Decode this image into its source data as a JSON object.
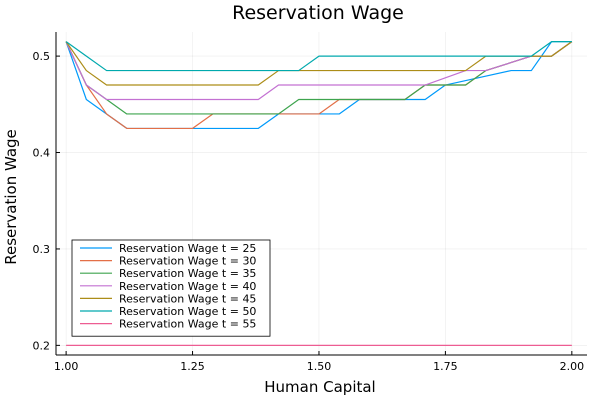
{
  "chart_data": {
    "type": "line",
    "title": "Reservation Wage",
    "xlabel": "Human Capital",
    "ylabel": "Reservation Wage",
    "xlim": [
      0.98,
      2.03
    ],
    "ylim": [
      0.19,
      0.525
    ],
    "xticks": [
      1.0,
      1.25,
      1.5,
      1.75,
      2.0
    ],
    "xtick_labels": [
      "1.00",
      "1.25",
      "1.50",
      "1.75",
      "2.00"
    ],
    "yticks": [
      0.2,
      0.3,
      0.4,
      0.5
    ],
    "ytick_labels": [
      "0.2",
      "0.3",
      "0.4",
      "0.5"
    ],
    "grid": true,
    "legend_position": "bottom-left",
    "series": [
      {
        "name": "Reservation Wage t = 25",
        "color": "#009AFA",
        "x": [
          1.0,
          1.04,
          1.08,
          1.12,
          1.25,
          1.29,
          1.38,
          1.42,
          1.54,
          1.58,
          1.71,
          1.75,
          1.88,
          1.92,
          1.96,
          2.0
        ],
        "y": [
          0.515,
          0.455,
          0.44,
          0.425,
          0.425,
          0.425,
          0.425,
          0.44,
          0.44,
          0.455,
          0.455,
          0.47,
          0.485,
          0.485,
          0.515,
          0.515
        ]
      },
      {
        "name": "Reservation Wage t = 30",
        "color": "#E36F47",
        "x": [
          1.0,
          1.04,
          1.08,
          1.12,
          1.25,
          1.29,
          1.38,
          1.42,
          1.5,
          1.54,
          1.67,
          1.71,
          1.79,
          1.83,
          1.92,
          1.96,
          2.0
        ],
        "y": [
          0.515,
          0.47,
          0.44,
          0.425,
          0.425,
          0.44,
          0.44,
          0.44,
          0.44,
          0.455,
          0.455,
          0.47,
          0.47,
          0.485,
          0.5,
          0.5,
          0.515
        ]
      },
      {
        "name": "Reservation Wage t = 35",
        "color": "#3EA44E",
        "x": [
          1.0,
          1.04,
          1.08,
          1.12,
          1.29,
          1.33,
          1.42,
          1.46,
          1.58,
          1.62,
          1.67,
          1.71,
          1.79,
          1.83,
          1.92,
          1.96,
          2.0
        ],
        "y": [
          0.515,
          0.47,
          0.455,
          0.44,
          0.44,
          0.44,
          0.44,
          0.455,
          0.455,
          0.455,
          0.455,
          0.47,
          0.47,
          0.485,
          0.5,
          0.5,
          0.515
        ]
      },
      {
        "name": "Reservation Wage t = 40",
        "color": "#C371D2",
        "x": [
          1.0,
          1.04,
          1.08,
          1.38,
          1.42,
          1.67,
          1.71,
          1.79,
          1.83,
          1.92,
          1.96,
          2.0
        ],
        "y": [
          0.515,
          0.47,
          0.455,
          0.455,
          0.47,
          0.47,
          0.47,
          0.485,
          0.485,
          0.5,
          0.5,
          0.515
        ]
      },
      {
        "name": "Reservation Wage t = 45",
        "color": "#AC8D18",
        "x": [
          1.0,
          1.04,
          1.08,
          1.38,
          1.42,
          1.46,
          1.79,
          1.83,
          1.96,
          2.0
        ],
        "y": [
          0.515,
          0.485,
          0.47,
          0.47,
          0.485,
          0.485,
          0.485,
          0.5,
          0.5,
          0.515
        ]
      },
      {
        "name": "Reservation Wage t = 50",
        "color": "#00A9AD",
        "x": [
          1.0,
          1.04,
          1.08,
          1.46,
          1.5,
          1.92,
          1.96,
          2.0
        ],
        "y": [
          0.515,
          0.5,
          0.485,
          0.485,
          0.5,
          0.5,
          0.515,
          0.515
        ]
      },
      {
        "name": "Reservation Wage t = 55",
        "color": "#ED5D92",
        "x": [
          1.0,
          2.0
        ],
        "y": [
          0.2,
          0.2
        ]
      }
    ]
  }
}
